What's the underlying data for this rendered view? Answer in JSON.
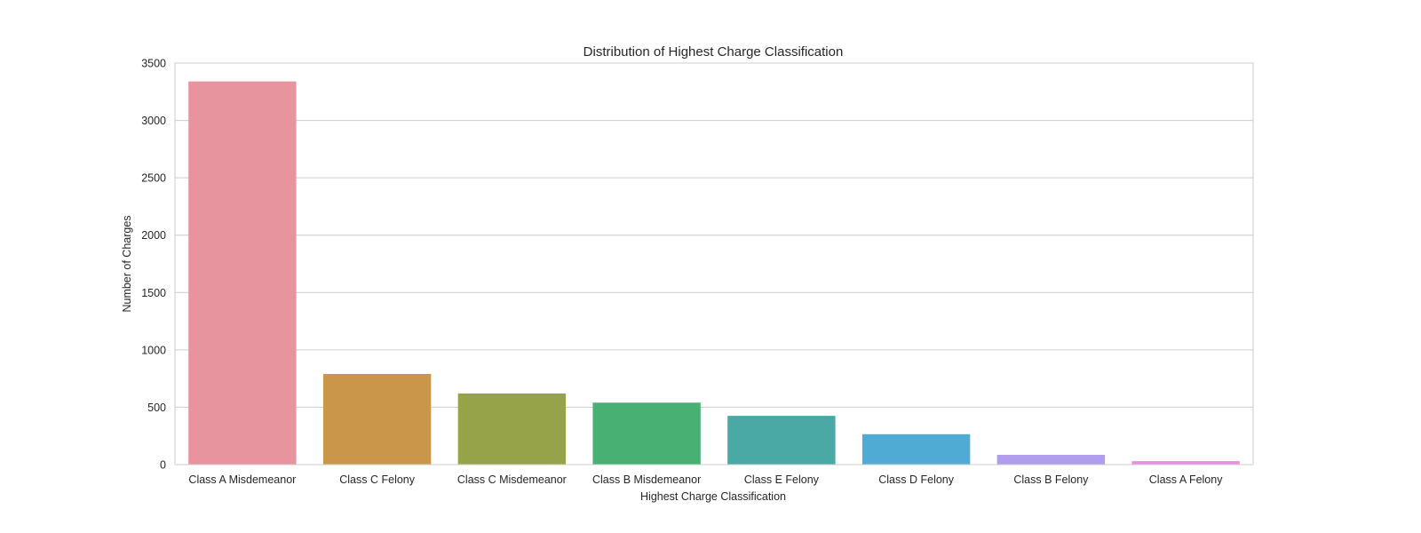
{
  "chart_data": {
    "type": "bar",
    "title": "Distribution of Highest Charge Classification",
    "xlabel": "Highest Charge Classification",
    "ylabel": "Number of Charges",
    "categories": [
      "Class A Misdemeanor",
      "Class C Felony",
      "Class C Misdemeanor",
      "Class B Misdemeanor",
      "Class E Felony",
      "Class D Felony",
      "Class B Felony",
      "Class A Felony"
    ],
    "values": [
      3340,
      790,
      620,
      540,
      425,
      265,
      85,
      30
    ],
    "colors": [
      "#e8949f",
      "#c9964a",
      "#97a348",
      "#48b073",
      "#4aa9a5",
      "#4fabd4",
      "#b09ded",
      "#e88fde"
    ],
    "ylim": [
      0,
      3500
    ],
    "yticks": [
      0,
      500,
      1000,
      1500,
      2000,
      2500,
      3000,
      3500
    ],
    "grid": true
  }
}
